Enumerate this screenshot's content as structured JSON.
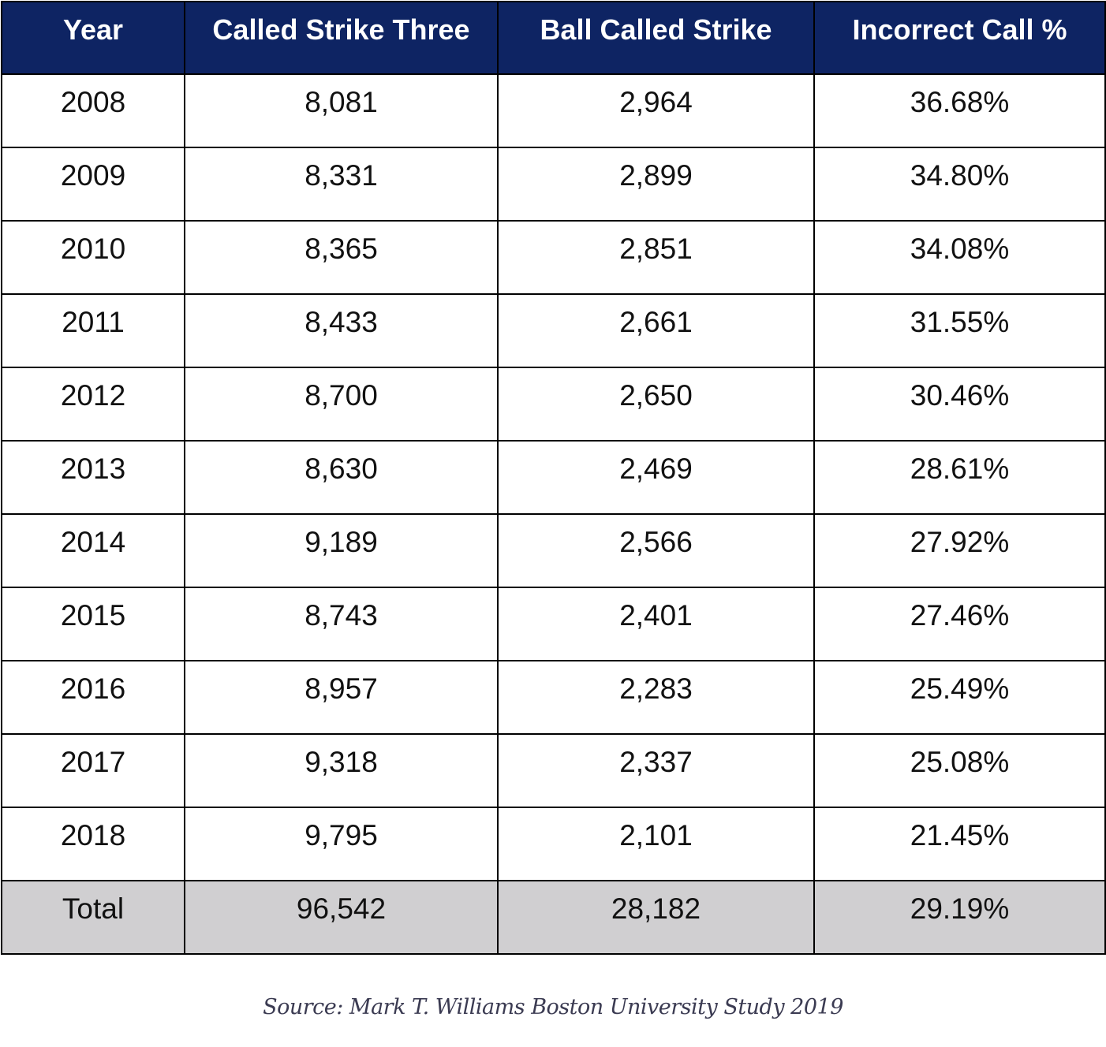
{
  "chart_data": {
    "type": "table",
    "columns": [
      "Year",
      "Called Strike Three",
      "Ball Called Strike",
      "Incorrect Call %"
    ],
    "rows": [
      [
        "2008",
        "8,081",
        "2,964",
        "36.68%"
      ],
      [
        "2009",
        "8,331",
        "2,899",
        "34.80%"
      ],
      [
        "2010",
        "8,365",
        "2,851",
        "34.08%"
      ],
      [
        "2011",
        "8,433",
        "2,661",
        "31.55%"
      ],
      [
        "2012",
        "8,700",
        "2,650",
        "30.46%"
      ],
      [
        "2013",
        "8,630",
        "2,469",
        "28.61%"
      ],
      [
        "2014",
        "9,189",
        "2,566",
        "27.92%"
      ],
      [
        "2015",
        "8,743",
        "2,401",
        "27.46%"
      ],
      [
        "2016",
        "8,957",
        "2,283",
        "25.49%"
      ],
      [
        "2017",
        "9,318",
        "2,337",
        "25.08%"
      ],
      [
        "2018",
        "9,795",
        "2,101",
        "21.45%"
      ]
    ],
    "total_row": [
      "Total",
      "96,542",
      "28,182",
      "29.19%"
    ],
    "source": "Source: Mark T. Williams Boston University Study 2019"
  },
  "colors": {
    "header_background": "#0e2463",
    "header_text": "#ffffff",
    "total_row_background": "#d0cfd1",
    "source_text": "#3b3b52"
  }
}
